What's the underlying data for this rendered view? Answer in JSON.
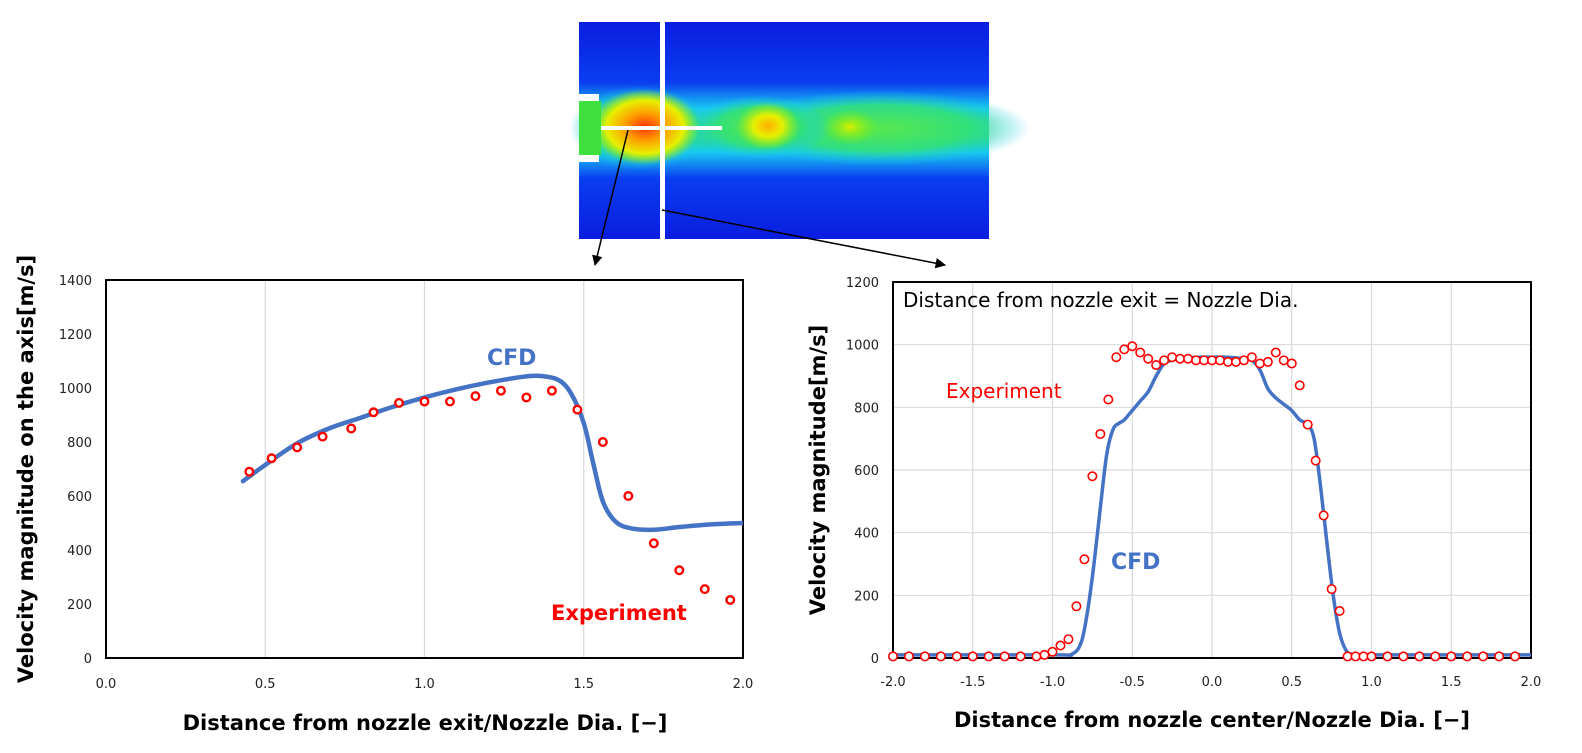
{
  "colors": {
    "cfd": "#4472c4",
    "experiment": "#ff0000",
    "grid": "#d9d9d9",
    "frame": "#000000"
  },
  "contour_image": {
    "icon": "cfd-velocity-contour-image"
  },
  "chart_data": [
    {
      "type": "scatter",
      "title": "",
      "xlabel": "Distance from nozzle exit/Nozzle Dia. [−]",
      "ylabel": "Velocity magnitude on the axis[m/s]",
      "xlim": [
        0.0,
        2.0
      ],
      "ylim": [
        0,
        1400
      ],
      "xticks": [
        0.0,
        0.5,
        1.0,
        1.5,
        2.0
      ],
      "xtick_labels": [
        "0.0",
        "0.5",
        "1.0",
        "1.5",
        "2.0"
      ],
      "yticks": [
        0,
        200,
        400,
        600,
        800,
        1000,
        1200,
        1400
      ],
      "ytick_labels": [
        "0",
        "200",
        "400",
        "600",
        "800",
        "1000",
        "1200",
        "1400"
      ],
      "grid": "vertical",
      "series": [
        {
          "name": "CFD",
          "style": "line",
          "x": [
            0.43,
            0.5,
            0.6,
            0.7,
            0.8,
            0.9,
            1.0,
            1.1,
            1.2,
            1.3,
            1.36,
            1.42,
            1.46,
            1.5,
            1.53,
            1.56,
            1.6,
            1.65,
            1.72,
            1.8,
            1.9,
            2.0
          ],
          "y": [
            655,
            715,
            795,
            850,
            890,
            930,
            965,
            995,
            1020,
            1040,
            1045,
            1030,
            980,
            870,
            720,
            580,
            505,
            480,
            475,
            485,
            495,
            500
          ]
        },
        {
          "name": "Experiment",
          "style": "markers",
          "x": [
            0.45,
            0.52,
            0.6,
            0.68,
            0.77,
            0.84,
            0.92,
            1.0,
            1.08,
            1.16,
            1.24,
            1.32,
            1.4,
            1.48,
            1.56,
            1.64,
            1.72,
            1.8,
            1.88,
            1.96
          ],
          "y": [
            690,
            740,
            780,
            820,
            850,
            910,
            945,
            950,
            950,
            970,
            990,
            965,
            990,
            920,
            800,
            600,
            425,
            325,
            255,
            215
          ]
        }
      ],
      "annotations": [
        {
          "text": "CFD",
          "series": "CFD"
        },
        {
          "text": "Experiment",
          "series": "Experiment"
        }
      ]
    },
    {
      "type": "scatter",
      "title": "",
      "xlabel": "Distance from nozzle center/Nozzle Dia. [−]",
      "ylabel": "Velocity magnitude[m/s]",
      "xlim": [
        -2.0,
        2.0
      ],
      "ylim": [
        0,
        1200
      ],
      "xticks": [
        -2.0,
        -1.5,
        -1.0,
        -0.5,
        0.0,
        0.5,
        1.0,
        1.5,
        2.0
      ],
      "xtick_labels": [
        "-2.0",
        "-1.5",
        "-1.0",
        "-0.5",
        "0.0",
        "0.5",
        "1.0",
        "1.5",
        "2.0"
      ],
      "yticks": [
        0,
        200,
        400,
        600,
        800,
        1000,
        1200
      ],
      "ytick_labels": [
        "0",
        "200",
        "400",
        "600",
        "800",
        "1000",
        "1200"
      ],
      "grid": "both",
      "series": [
        {
          "name": "CFD",
          "style": "line",
          "x": [
            -2.0,
            -1.0,
            -0.88,
            -0.82,
            -0.78,
            -0.74,
            -0.7,
            -0.66,
            -0.62,
            -0.58,
            -0.55,
            -0.5,
            -0.45,
            -0.4,
            -0.35,
            -0.3,
            -0.25,
            -0.2,
            -0.1,
            0.0,
            0.1,
            0.2,
            0.25,
            0.3,
            0.35,
            0.4,
            0.45,
            0.5,
            0.55,
            0.6,
            0.64,
            0.68,
            0.72,
            0.76,
            0.8,
            0.84,
            0.88,
            1.0,
            2.0
          ],
          "y": [
            10,
            10,
            12,
            50,
            150,
            300,
            480,
            650,
            730,
            750,
            760,
            790,
            820,
            850,
            900,
            940,
            950,
            955,
            960,
            960,
            960,
            955,
            950,
            920,
            860,
            830,
            810,
            790,
            760,
            745,
            700,
            550,
            370,
            200,
            80,
            25,
            12,
            10,
            10
          ]
        },
        {
          "name": "Experiment",
          "style": "markers",
          "x": [
            -2.0,
            -1.9,
            -1.8,
            -1.7,
            -1.6,
            -1.5,
            -1.4,
            -1.3,
            -1.2,
            -1.1,
            -1.05,
            -1.0,
            -0.95,
            -0.9,
            -0.85,
            -0.8,
            -0.75,
            -0.7,
            -0.65,
            -0.6,
            -0.55,
            -0.5,
            -0.45,
            -0.4,
            -0.35,
            -0.3,
            -0.25,
            -0.2,
            -0.15,
            -0.1,
            -0.05,
            0.0,
            0.05,
            0.1,
            0.15,
            0.2,
            0.25,
            0.3,
            0.35,
            0.4,
            0.45,
            0.5,
            0.55,
            0.6,
            0.65,
            0.7,
            0.75,
            0.8,
            0.85,
            0.9,
            0.95,
            1.0,
            1.1,
            1.2,
            1.3,
            1.4,
            1.5,
            1.6,
            1.7,
            1.8,
            1.9
          ],
          "y": [
            5,
            5,
            5,
            5,
            5,
            5,
            5,
            5,
            5,
            5,
            10,
            20,
            40,
            60,
            165,
            315,
            580,
            715,
            825,
            960,
            985,
            995,
            975,
            955,
            935,
            950,
            960,
            955,
            955,
            950,
            950,
            950,
            950,
            945,
            945,
            950,
            960,
            940,
            945,
            975,
            950,
            940,
            870,
            745,
            630,
            455,
            220,
            150,
            5,
            5,
            5,
            5,
            5,
            5,
            5,
            5,
            5,
            5,
            5,
            5,
            5
          ]
        }
      ],
      "annotations": [
        {
          "text": "Distance from nozzle exit = Nozzle Dia."
        },
        {
          "text": "Experiment",
          "series": "Experiment"
        },
        {
          "text": "CFD",
          "series": "CFD"
        }
      ]
    }
  ]
}
